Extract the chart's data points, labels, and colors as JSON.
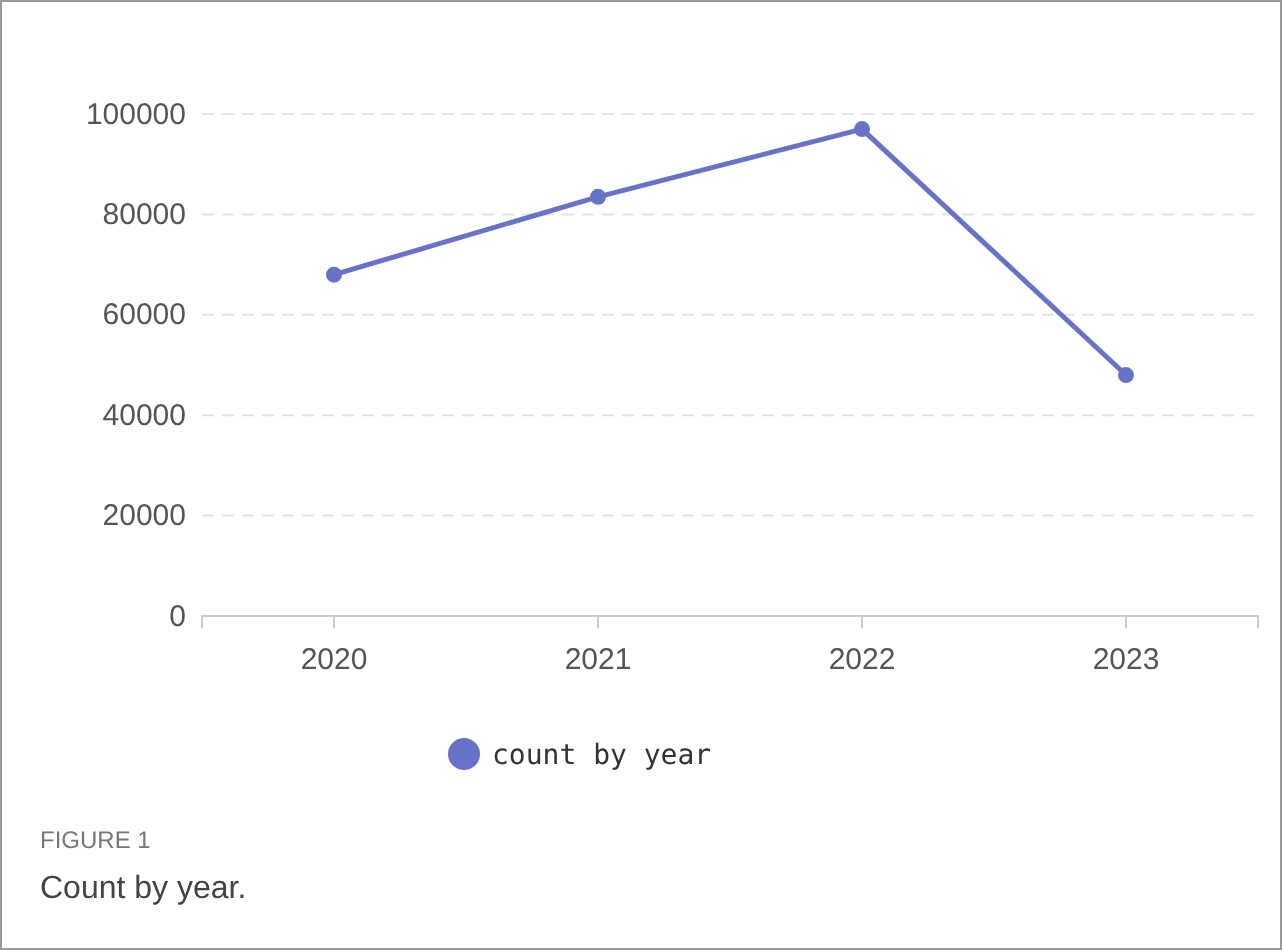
{
  "chart_data": {
    "type": "line",
    "categories": [
      "2020",
      "2021",
      "2022",
      "2023"
    ],
    "series": [
      {
        "name": "count by year",
        "color": "#6873c8",
        "values": [
          68000,
          83500,
          97000,
          48000
        ]
      }
    ],
    "ylim": [
      0,
      100000
    ],
    "yticks": [
      0,
      20000,
      40000,
      60000,
      80000,
      100000
    ],
    "grid": "y",
    "legend": "bottom",
    "marker": "circle",
    "annotations": [
      "FIGURE 1",
      "Count by year."
    ]
  }
}
